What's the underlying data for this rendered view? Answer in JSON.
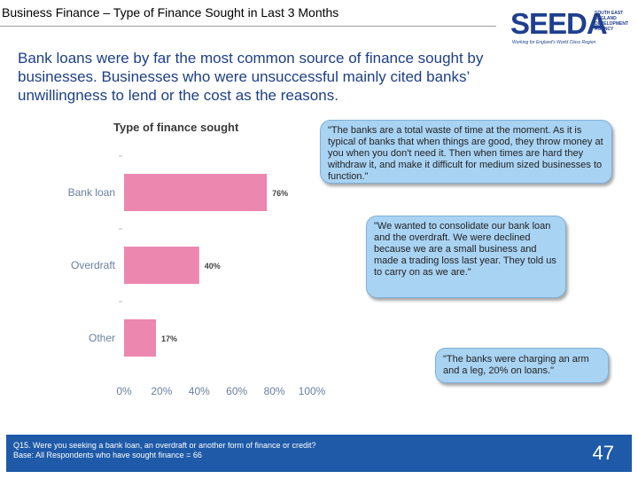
{
  "header": {
    "title": "Business Finance – Type of Finance Sought in Last 3 Months"
  },
  "logo": {
    "wordmark": "SEEDA",
    "side_text": "SOUTH EAST ENGLAND DEVELOPMENT AGENCY",
    "tagline": "Working for England's World Class Region"
  },
  "headline": "Bank loans were by far the most common source of finance sought by businesses. Businesses who were unsuccessful mainly cited banks’ unwillingness to lend or the cost as the reasons.",
  "chart_data": {
    "type": "bar",
    "orientation": "horizontal",
    "title": "Type of finance sought",
    "categories": [
      "Bank loan",
      "Overdraft",
      "Other"
    ],
    "values": [
      76,
      40,
      17
    ],
    "value_labels": [
      "76%",
      "40%",
      "17%"
    ],
    "xlim": [
      0,
      100
    ],
    "x_ticks": [
      "0%",
      "20%",
      "40%",
      "60%",
      "80%",
      "100%"
    ],
    "bar_color": "#ec87b0",
    "grid": false
  },
  "quotes": [
    "\"The banks are a total waste of time at the moment. As it is typical of banks that when things are good, they throw money at you when you don't need it. Then when times are hard they withdraw it, and make it difficult for medium sized businesses to function.\"",
    "\"We wanted to consolidate our bank loan and the overdraft. We were declined because we are a small business and made a trading loss last year. They told us to carry on as we are.\"",
    "\"The banks were charging an arm and a leg, 20% on loans.\""
  ],
  "footer": {
    "question": "Q15. Were you seeking a bank loan, an overdraft or another form of finance or credit?",
    "base": "Base: All Respondents who have sought finance = 66",
    "page_number": "47"
  }
}
